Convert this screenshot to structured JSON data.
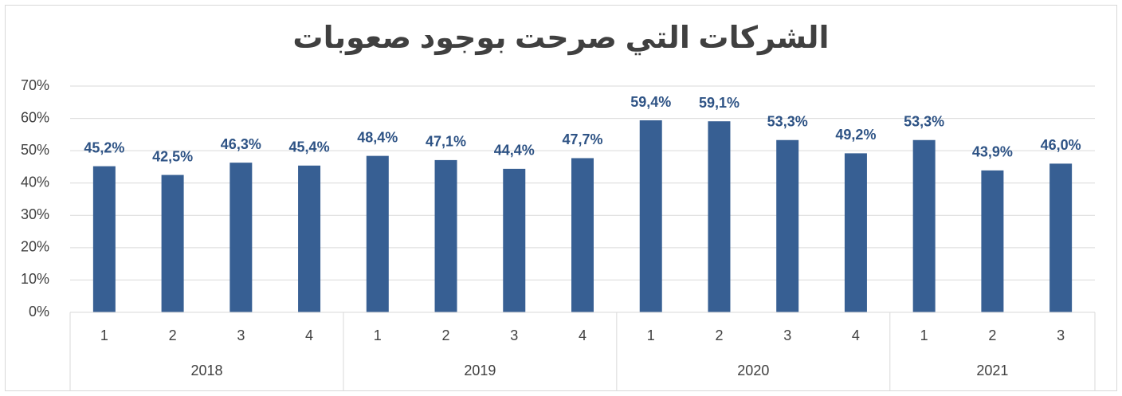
{
  "chart_data": {
    "type": "bar",
    "title": "الشركات التي صرحت بوجود صعوبات",
    "color": "#375f93",
    "label_color": "#2e5385",
    "grid": true,
    "ylim": [
      0,
      70
    ],
    "yticks": [
      {
        "value": 0,
        "label": "0%"
      },
      {
        "value": 10,
        "label": "10%"
      },
      {
        "value": 20,
        "label": "20%"
      },
      {
        "value": 30,
        "label": "30%"
      },
      {
        "value": 40,
        "label": "40%"
      },
      {
        "value": 50,
        "label": "50%"
      },
      {
        "value": 60,
        "label": "60%"
      },
      {
        "value": 70,
        "label": "70%"
      }
    ],
    "groups": [
      {
        "label": "2018",
        "categories": [
          "1",
          "2",
          "3",
          "4"
        ],
        "values": [
          45.2,
          42.5,
          46.3,
          45.4
        ],
        "value_labels": [
          "45,2%",
          "42,5%",
          "46,3%",
          "45,4%"
        ]
      },
      {
        "label": "2019",
        "categories": [
          "1",
          "2",
          "3",
          "4"
        ],
        "values": [
          48.4,
          47.1,
          44.4,
          47.7
        ],
        "value_labels": [
          "48,4%",
          "47,1%",
          "44,4%",
          "47,7%"
        ]
      },
      {
        "label": "2020",
        "categories": [
          "1",
          "2",
          "3",
          "4"
        ],
        "values": [
          59.4,
          59.1,
          53.3,
          49.2
        ],
        "value_labels": [
          "59,4%",
          "59,1%",
          "53,3%",
          "49,2%"
        ]
      },
      {
        "label": "2021",
        "categories": [
          "1",
          "2",
          "3"
        ],
        "values": [
          53.3,
          43.9,
          46.0
        ],
        "value_labels": [
          "53,3%",
          "43,9%",
          "46,0%"
        ]
      }
    ]
  }
}
